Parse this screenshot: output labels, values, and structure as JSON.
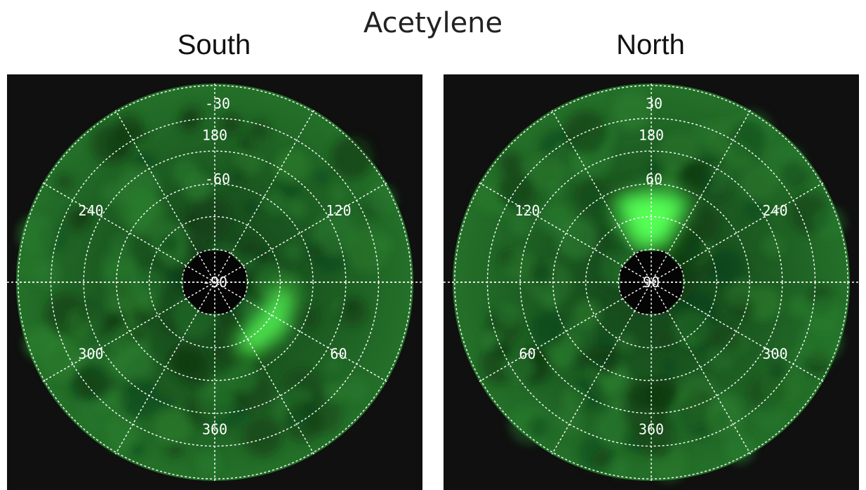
{
  "title": "Acetylene",
  "colors": {
    "background": "#101010",
    "disk": "#1f5c20",
    "grid": "#ffffff",
    "bright": "#55ff55"
  },
  "chart_data": [
    {
      "type": "heatmap",
      "projection": "polar",
      "title": "South",
      "latitude_rings": [
        -30,
        -60
      ],
      "center_label": "-90",
      "longitude_labels": [
        {
          "text": "180",
          "angle_deg": 0
        },
        {
          "text": "120",
          "angle_deg": 60
        },
        {
          "text": "60",
          "angle_deg": 120
        },
        {
          "text": "360",
          "angle_deg": 180
        },
        {
          "text": "300",
          "angle_deg": 240
        },
        {
          "text": "240",
          "angle_deg": 300
        }
      ],
      "bright_feature": {
        "shape": "arc",
        "r0": 0.28,
        "r1": 0.42,
        "a0": 95,
        "a1": 160,
        "intensity": 0.85
      },
      "dark_center_radius": 0.17
    },
    {
      "type": "heatmap",
      "projection": "polar",
      "title": "North",
      "latitude_rings": [
        30,
        60
      ],
      "center_label": "90",
      "longitude_labels": [
        {
          "text": "180",
          "angle_deg": 0
        },
        {
          "text": "240",
          "angle_deg": 60
        },
        {
          "text": "300",
          "angle_deg": 120
        },
        {
          "text": "360",
          "angle_deg": 180
        },
        {
          "text": "60",
          "angle_deg": 240
        },
        {
          "text": "120",
          "angle_deg": 300
        }
      ],
      "bright_feature": {
        "shape": "patch",
        "r0": 0.18,
        "r1": 0.46,
        "a0": -25,
        "a1": 25,
        "intensity": 1.0
      },
      "dark_center_radius": 0.17
    }
  ]
}
